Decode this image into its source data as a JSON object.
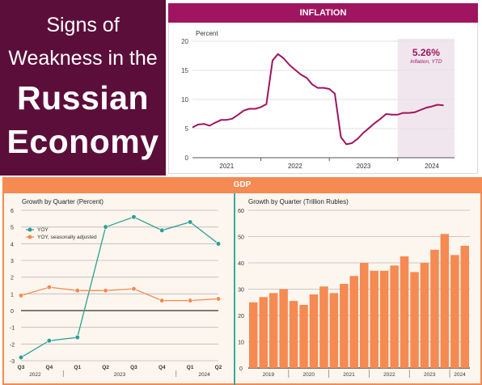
{
  "title": {
    "line1": "Signs of",
    "line2": "Weakness in the",
    "line3": "Russian",
    "line4": "Economy"
  },
  "colors": {
    "maroon": "#5c0e3a",
    "magenta": "#a0155f",
    "orange": "#f58a52",
    "teal": "#3aa89a",
    "cream": "#fdf6ee"
  },
  "chart_data": [
    {
      "id": "inflation",
      "type": "line",
      "header": "INFLATION",
      "ylabel": "Percent",
      "ylim": [
        0,
        20
      ],
      "yticks": [
        0,
        5,
        10,
        15,
        20
      ],
      "year_labels": [
        {
          "label": "2021",
          "x": 2021.5
        },
        {
          "label": "2022",
          "x": 2022.5
        },
        {
          "label": "2023",
          "x": 2023.5
        },
        {
          "label": "2024",
          "x": 2024.5
        }
      ],
      "xlim": [
        2021.0,
        2024.83
      ],
      "shade_from": 2024.0,
      "annotation": {
        "value": "5.26%",
        "label": "Inflation, YTD"
      },
      "series": [
        {
          "color": "#a0155f",
          "points": [
            [
              2021.0,
              5.2
            ],
            [
              2021.08,
              5.7
            ],
            [
              2021.17,
              5.8
            ],
            [
              2021.25,
              5.5
            ],
            [
              2021.33,
              6.0
            ],
            [
              2021.42,
              6.5
            ],
            [
              2021.5,
              6.5
            ],
            [
              2021.58,
              6.7
            ],
            [
              2021.67,
              7.4
            ],
            [
              2021.75,
              8.1
            ],
            [
              2021.83,
              8.4
            ],
            [
              2021.92,
              8.4
            ],
            [
              2022.0,
              8.7
            ],
            [
              2022.08,
              9.2
            ],
            [
              2022.17,
              16.7
            ],
            [
              2022.25,
              17.8
            ],
            [
              2022.33,
              17.1
            ],
            [
              2022.42,
              15.9
            ],
            [
              2022.5,
              15.1
            ],
            [
              2022.58,
              14.3
            ],
            [
              2022.67,
              13.7
            ],
            [
              2022.75,
              12.6
            ],
            [
              2022.83,
              12.0
            ],
            [
              2022.92,
              12.0
            ],
            [
              2023.0,
              11.8
            ],
            [
              2023.08,
              11.0
            ],
            [
              2023.17,
              3.5
            ],
            [
              2023.25,
              2.3
            ],
            [
              2023.33,
              2.5
            ],
            [
              2023.42,
              3.3
            ],
            [
              2023.5,
              4.3
            ],
            [
              2023.58,
              5.1
            ],
            [
              2023.67,
              6.0
            ],
            [
              2023.75,
              6.7
            ],
            [
              2023.83,
              7.5
            ],
            [
              2023.92,
              7.4
            ],
            [
              2024.0,
              7.4
            ],
            [
              2024.08,
              7.7
            ],
            [
              2024.17,
              7.7
            ],
            [
              2024.25,
              7.8
            ],
            [
              2024.33,
              8.2
            ],
            [
              2024.42,
              8.6
            ],
            [
              2024.5,
              8.8
            ],
            [
              2024.58,
              9.1
            ],
            [
              2024.67,
              9.0
            ]
          ]
        }
      ]
    },
    {
      "id": "gdp_growth",
      "type": "line",
      "header": "GDP",
      "title": "Growth by Quarter (Percent)",
      "ylim": [
        -3,
        6
      ],
      "yticks": [
        -3,
        -2,
        -1,
        0,
        1,
        2,
        3,
        4,
        5,
        6
      ],
      "categories": [
        "Q3",
        "Q4",
        "Q1",
        "Q2",
        "Q3",
        "Q4",
        "Q1",
        "Q2"
      ],
      "year_labels": [
        {
          "label": "2022",
          "from": 0,
          "to": 1
        },
        {
          "label": "2023",
          "from": 2,
          "to": 5
        },
        {
          "label": "2024",
          "from": 6,
          "to": 7
        }
      ],
      "series": [
        {
          "name": "YOY",
          "color": "#2e9e94",
          "values": [
            -2.8,
            -1.8,
            -1.6,
            5.0,
            5.6,
            4.8,
            5.3,
            4.0
          ]
        },
        {
          "name": "YOY, seasonally adjusted",
          "color": "#f58a52",
          "values": [
            0.9,
            1.4,
            1.2,
            1.2,
            1.3,
            0.6,
            0.6,
            0.7
          ]
        }
      ]
    },
    {
      "id": "gdp_level",
      "type": "bar",
      "title": "Growth by Quarter (Trillion Rubles)",
      "ylim": [
        0,
        60
      ],
      "yticks": [
        0,
        10,
        20,
        30,
        40,
        50,
        60
      ],
      "year_labels": [
        {
          "label": "2019",
          "from": 0,
          "to": 3
        },
        {
          "label": "2020",
          "from": 4,
          "to": 7
        },
        {
          "label": "2021",
          "from": 8,
          "to": 11
        },
        {
          "label": "2022",
          "from": 12,
          "to": 15
        },
        {
          "label": "2023",
          "from": 16,
          "to": 19
        },
        {
          "label": "2024",
          "from": 20,
          "to": 21
        }
      ],
      "color": "#f58a52",
      "values": [
        25,
        27,
        28.5,
        30,
        25.5,
        24,
        28,
        31,
        28.5,
        32,
        35,
        40,
        37,
        37,
        39,
        42.5,
        36.5,
        40,
        45,
        51,
        43,
        46.5
      ]
    }
  ]
}
